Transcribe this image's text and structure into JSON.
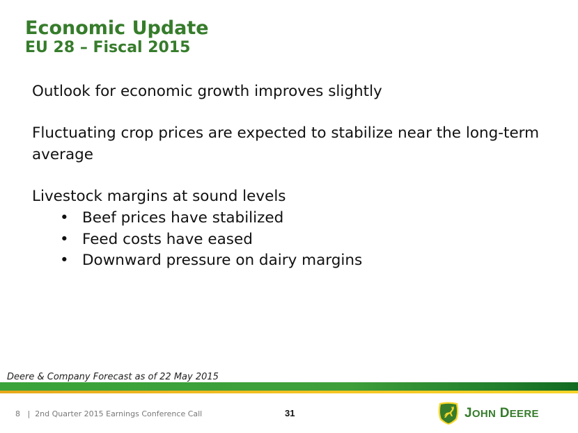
{
  "header": {
    "title": "Economic Update",
    "subtitle": "EU 28 – Fiscal 2015"
  },
  "body": {
    "paragraphs": [
      "Outlook for economic growth improves slightly",
      "Fluctuating crop prices are expected to stabilize near the long-term average",
      "Livestock margins at sound levels"
    ],
    "bullet_symbol": "•",
    "bullets": [
      "Beef prices have stabilized",
      "Feed costs have eased",
      "Downward pressure on dairy margins"
    ]
  },
  "note": "Deere & Company Forecast as of 22 May 2015",
  "footer": {
    "text": "8   |  2nd Quarter 2015 Earnings Conference Call",
    "page_number": "31"
  },
  "brand": {
    "first_initial": "J",
    "first_rest": "OHN",
    "second_initial": "D",
    "second_rest": "EERE",
    "primary_color": "#367C2B",
    "accent_color": "#F7D52A"
  }
}
